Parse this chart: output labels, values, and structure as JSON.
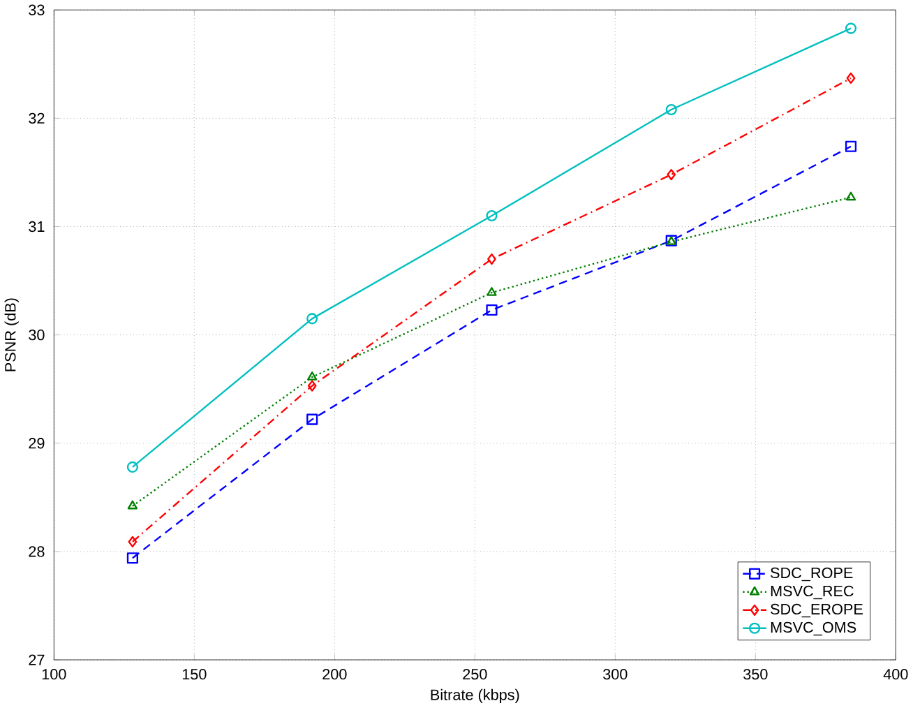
{
  "chart_data": {
    "type": "line",
    "xlabel": "Bitrate (kbps)",
    "ylabel": "PSNR (dB)",
    "x": [
      128,
      192,
      256,
      320,
      384
    ],
    "series": [
      {
        "name": "SDC_ROPE",
        "color": "#0000ff",
        "values": [
          27.94,
          29.22,
          30.23,
          30.87,
          31.74
        ],
        "marker": "square",
        "line_style": "dashed"
      },
      {
        "name": "MSVC_REC",
        "color": "#008000",
        "values": [
          28.42,
          29.61,
          30.39,
          30.86,
          31.27
        ],
        "marker": "triangle",
        "line_style": "dotted"
      },
      {
        "name": "SDC_EROPE",
        "color": "#ff0000",
        "values": [
          28.09,
          29.53,
          30.7,
          31.48,
          32.37
        ],
        "marker": "diamond",
        "line_style": "dashdot"
      },
      {
        "name": "MSVC_OMS",
        "color": "#00bfbf",
        "values": [
          28.78,
          30.15,
          31.1,
          32.08,
          32.83
        ],
        "marker": "circle",
        "line_style": "solid"
      }
    ],
    "xlim": [
      100,
      400
    ],
    "ylim": [
      27,
      33
    ],
    "xticks": [
      100,
      150,
      200,
      250,
      300,
      350,
      400
    ],
    "yticks": [
      27,
      28,
      29,
      30,
      31,
      32,
      33
    ],
    "grid": true,
    "legend": "bottom right"
  }
}
